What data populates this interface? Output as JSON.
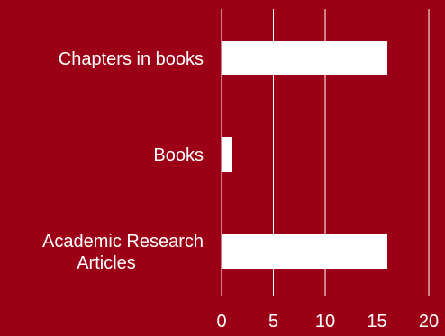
{
  "colors": {
    "background": "#9b0016",
    "bar": "#ffffff",
    "grid": "#ffffff",
    "text": "#ffffff"
  },
  "chart_data": {
    "type": "bar",
    "orientation": "horizontal",
    "categories": [
      {
        "lines": [
          "Chapters in books"
        ]
      },
      {
        "lines": [
          "Books"
        ]
      },
      {
        "lines": [
          "Academic Research",
          "Articles"
        ]
      }
    ],
    "values": [
      16,
      1,
      16
    ],
    "xlim": [
      0,
      20
    ],
    "xticks": [
      "0",
      "5",
      "10",
      "15",
      "20"
    ],
    "grid": "vertical",
    "title": "",
    "xlabel": "",
    "ylabel": "",
    "legend": "none"
  }
}
